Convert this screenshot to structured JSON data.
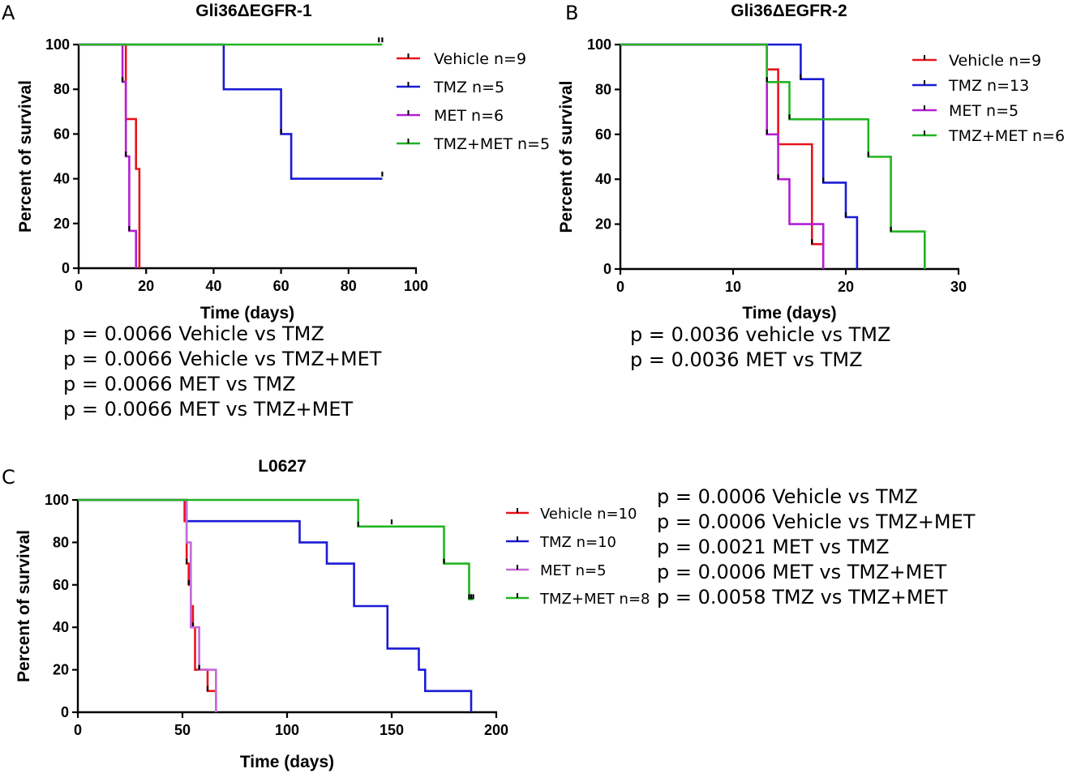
{
  "chart_data": [
    {
      "panel_label": "A",
      "type": "line",
      "subtype": "kaplan-meier-survival",
      "title": "Gli36ΔEGFR-1",
      "xlabel": "Time (days)",
      "ylabel": "Percent of survival",
      "xlim": [
        0,
        100
      ],
      "ylim": [
        0,
        100
      ],
      "xticks": [
        0,
        20,
        40,
        60,
        80,
        100
      ],
      "yticks": [
        0,
        20,
        40,
        60,
        80,
        100
      ],
      "grid": false,
      "legend_position": "right",
      "series": [
        {
          "name": "Vehicle n=9",
          "color": "#e8141b",
          "steps": [
            [
              0,
              100
            ],
            [
              14,
              100
            ],
            [
              14,
              66.7
            ],
            [
              17,
              66.7
            ],
            [
              17,
              44.4
            ],
            [
              18,
              44.4
            ],
            [
              18,
              0
            ]
          ],
          "censored": []
        },
        {
          "name": "TMZ n=5",
          "color": "#1a1ad6",
          "steps": [
            [
              0,
              100
            ],
            [
              43,
              100
            ],
            [
              43,
              80
            ],
            [
              60,
              80
            ],
            [
              60,
              60
            ],
            [
              63,
              60
            ],
            [
              63,
              40
            ],
            [
              90,
              40
            ]
          ],
          "censored": [
            [
              60,
              60
            ],
            [
              90,
              41
            ]
          ]
        },
        {
          "name": "MET n=6",
          "color": "#b41ed4",
          "steps": [
            [
              0,
              100
            ],
            [
              13,
              100
            ],
            [
              13,
              83.3
            ],
            [
              14,
              83.3
            ],
            [
              14,
              50
            ],
            [
              15,
              50
            ],
            [
              15,
              16.7
            ],
            [
              17,
              16.7
            ],
            [
              17,
              0
            ]
          ],
          "censored": [
            [
              13,
              83.3
            ],
            [
              14,
              50
            ],
            [
              15,
              16.7
            ]
          ]
        },
        {
          "name": "TMZ+MET n=5",
          "color": "#22b422",
          "steps": [
            [
              0,
              100
            ],
            [
              90,
              100
            ]
          ],
          "censored": [
            [
              89,
              101
            ],
            [
              90,
              101
            ]
          ]
        }
      ],
      "pvalues": [
        "p = 0.0066 Vehicle vs TMZ",
        "p = 0.0066 Vehicle vs TMZ+MET",
        "p = 0.0066 MET vs TMZ",
        "p = 0.0066 MET vs TMZ+MET"
      ]
    },
    {
      "panel_label": "B",
      "type": "line",
      "subtype": "kaplan-meier-survival",
      "title": "Gli36ΔEGFR-2",
      "xlabel": "Time (days)",
      "ylabel": "Percent of survival",
      "xlim": [
        0,
        30
      ],
      "ylim": [
        0,
        100
      ],
      "xticks": [
        0,
        10,
        20,
        30
      ],
      "yticks": [
        0,
        20,
        40,
        60,
        80,
        100
      ],
      "grid": false,
      "legend_position": "right",
      "series": [
        {
          "name": "Vehicle n=9",
          "color": "#e8141b",
          "steps": [
            [
              0,
              100
            ],
            [
              13,
              100
            ],
            [
              13,
              88.9
            ],
            [
              14,
              88.9
            ],
            [
              14,
              55.6
            ],
            [
              17,
              55.6
            ],
            [
              17,
              11.1
            ],
            [
              18,
              11.1
            ],
            [
              18,
              0
            ]
          ],
          "censored": [
            [
              17,
              11.1
            ]
          ]
        },
        {
          "name": "TMZ n=13",
          "color": "#1a1ad6",
          "steps": [
            [
              0,
              100
            ],
            [
              16,
              100
            ],
            [
              16,
              84.6
            ],
            [
              18,
              84.6
            ],
            [
              18,
              38.5
            ],
            [
              20,
              38.5
            ],
            [
              20,
              23.1
            ],
            [
              21,
              23.1
            ],
            [
              21,
              0
            ]
          ],
          "censored": [
            [
              16,
              84.6
            ],
            [
              18,
              38.5
            ],
            [
              20,
              23.1
            ]
          ]
        },
        {
          "name": "MET n=5",
          "color": "#b41ed4",
          "steps": [
            [
              0,
              100
            ],
            [
              13,
              100
            ],
            [
              13,
              60
            ],
            [
              14,
              60
            ],
            [
              14,
              40
            ],
            [
              15,
              40
            ],
            [
              15,
              20
            ],
            [
              18,
              20
            ],
            [
              18,
              0
            ]
          ],
          "censored": [
            [
              13,
              60
            ],
            [
              14,
              40
            ]
          ]
        },
        {
          "name": "TMZ+MET n=6",
          "color": "#22b422",
          "steps": [
            [
              0,
              100
            ],
            [
              13,
              100
            ],
            [
              13,
              83.3
            ],
            [
              15,
              83.3
            ],
            [
              15,
              66.7
            ],
            [
              22,
              66.7
            ],
            [
              22,
              50
            ],
            [
              24,
              50
            ],
            [
              24,
              16.7
            ],
            [
              27,
              16.7
            ],
            [
              27,
              0
            ]
          ],
          "censored": [
            [
              13,
              83.3
            ],
            [
              15,
              66.7
            ],
            [
              22,
              50
            ],
            [
              24,
              16.7
            ]
          ]
        }
      ],
      "pvalues": [
        "p = 0.0036 vehicle vs TMZ",
        "p = 0.0036 MET vs TMZ"
      ]
    },
    {
      "panel_label": "C",
      "type": "line",
      "subtype": "kaplan-meier-survival",
      "title": "L0627",
      "xlabel": "Time (days)",
      "ylabel": "Percent of survival",
      "xlim": [
        0,
        200
      ],
      "ylim": [
        0,
        100
      ],
      "xticks": [
        0,
        50,
        100,
        150,
        200
      ],
      "yticks": [
        0,
        20,
        40,
        60,
        80,
        100
      ],
      "grid": false,
      "legend_position": "right",
      "series": [
        {
          "name": "Vehicle n=10",
          "color": "#e8141b",
          "steps": [
            [
              0,
              100
            ],
            [
              51,
              100
            ],
            [
              51,
              90
            ],
            [
              52,
              90
            ],
            [
              52,
              70
            ],
            [
              53,
              70
            ],
            [
              53,
              60
            ],
            [
              54,
              60
            ],
            [
              54,
              50
            ],
            [
              55,
              50
            ],
            [
              55,
              40
            ],
            [
              56,
              40
            ],
            [
              56,
              20
            ],
            [
              62,
              20
            ],
            [
              62,
              10
            ],
            [
              66,
              10
            ],
            [
              66,
              0
            ]
          ],
          "censored": [
            [
              52,
              70
            ],
            [
              53,
              60
            ],
            [
              54,
              50
            ],
            [
              55,
              40
            ],
            [
              62,
              10
            ]
          ]
        },
        {
          "name": "TMZ n=10",
          "color": "#1a1ad6",
          "steps": [
            [
              0,
              100
            ],
            [
              52,
              100
            ],
            [
              52,
              90
            ],
            [
              106,
              90
            ],
            [
              106,
              80
            ],
            [
              119,
              80
            ],
            [
              119,
              70
            ],
            [
              132,
              70
            ],
            [
              132,
              50
            ],
            [
              148,
              50
            ],
            [
              148,
              30
            ],
            [
              163,
              30
            ],
            [
              163,
              20
            ],
            [
              166,
              20
            ],
            [
              166,
              10
            ],
            [
              188,
              10
            ],
            [
              188,
              0
            ]
          ],
          "censored": []
        },
        {
          "name": "MET n=5",
          "color": "#c36bd8",
          "steps": [
            [
              0,
              100
            ],
            [
              52,
              100
            ],
            [
              52,
              80
            ],
            [
              54,
              80
            ],
            [
              54,
              40
            ],
            [
              58,
              40
            ],
            [
              58,
              20
            ],
            [
              66,
              20
            ],
            [
              66,
              0
            ]
          ],
          "censored": [
            [
              58,
              20
            ]
          ]
        },
        {
          "name": "TMZ+MET n=8",
          "color": "#22b422",
          "steps": [
            [
              0,
              100
            ],
            [
              134,
              100
            ],
            [
              134,
              87.5
            ],
            [
              175,
              87.5
            ],
            [
              175,
              70
            ],
            [
              187,
              70
            ],
            [
              187,
              53.3
            ],
            [
              189,
              53.3
            ]
          ],
          "censored": [
            [
              134,
              87.5
            ],
            [
              150,
              88.5
            ],
            [
              175,
              70
            ],
            [
              187,
              53.3
            ],
            [
              188,
              53.3
            ],
            [
              189,
              53.3
            ]
          ]
        }
      ],
      "pvalues": [
        "p = 0.0006 Vehicle vs TMZ",
        "p = 0.0006 Vehicle vs TMZ+MET",
        "p = 0.0021 MET vs TMZ",
        "p = 0.0006 MET vs TMZ+MET",
        "p = 0.0058 TMZ vs TMZ+MET"
      ]
    }
  ]
}
